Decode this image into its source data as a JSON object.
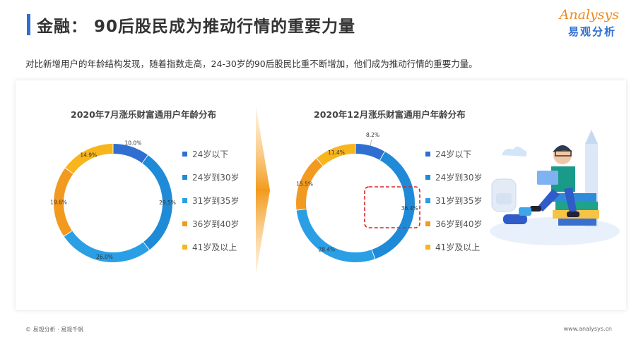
{
  "header": {
    "title": "金融： 90后股民成为推动行情的重要力量",
    "subtitle": "对比新增用户的年龄结构发现，随着指数走高，24-30岁的90后股民比重不断增加，他们成为推动行情的重要力量。"
  },
  "logo": {
    "en": "Analysys",
    "cn": "易观分析"
  },
  "legend_colors": [
    "#2f6fd1",
    "#1f8bd8",
    "#2a9fe6",
    "#f29a1f",
    "#f8b51c"
  ],
  "chart_data": [
    {
      "type": "pie",
      "donut": true,
      "title": "2020年7月涨乐财富通用户年龄分布",
      "categories": [
        "24岁以下",
        "24岁到30岁",
        "31岁到35岁",
        "36岁到40岁",
        "41岁及以上"
      ],
      "values": [
        10.0,
        29.5,
        26.0,
        19.6,
        14.9
      ],
      "labels": [
        "10.0%",
        "29.5%",
        "26.0%",
        "19.6%",
        "14.9%"
      ],
      "legend_position": "right"
    },
    {
      "type": "pie",
      "donut": true,
      "title": "2020年12月涨乐财富通用户年龄分布",
      "categories": [
        "24岁以下",
        "24岁到30岁",
        "31岁到35岁",
        "36岁到40岁",
        "41岁及以上"
      ],
      "values": [
        8.2,
        36.4,
        28.4,
        15.5,
        11.4
      ],
      "labels": [
        "8.2%",
        "36.4%",
        "28.4%",
        "15.5%",
        "11.4%"
      ],
      "highlight": "36.4%",
      "legend_position": "right"
    }
  ],
  "footer": {
    "left": "© 易观分析 · 易观千帆",
    "right": "www.analysys.cn"
  }
}
